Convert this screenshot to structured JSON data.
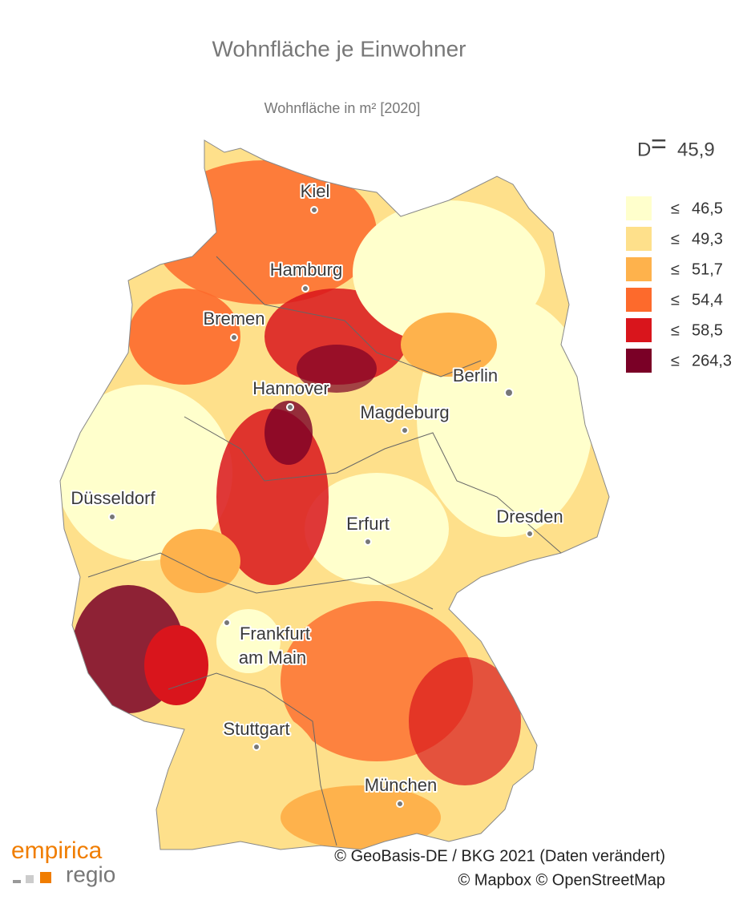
{
  "header": {
    "title": "Wohnfläche je Einwohner",
    "subtitle": "Wohnfläche in m² [2020]"
  },
  "average": {
    "label": "D",
    "sign": "=",
    "value": "45,9"
  },
  "legend": [
    {
      "symbol": "≤",
      "label": "46,5",
      "color": "#ffffcc"
    },
    {
      "symbol": "≤",
      "label": "49,3",
      "color": "#fee08b"
    },
    {
      "symbol": "≤",
      "label": "51,7",
      "color": "#feb24c"
    },
    {
      "symbol": "≤",
      "label": "54,4",
      "color": "#fd6a2c"
    },
    {
      "symbol": "≤",
      "label": "58,5",
      "color": "#d9151c"
    },
    {
      "symbol": "≤",
      "label": "264,3",
      "color": "#7a0026"
    }
  ],
  "cities": [
    {
      "lines": [
        "Kiel"
      ]
    },
    {
      "lines": [
        "Hamburg"
      ]
    },
    {
      "lines": [
        "Bremen"
      ]
    },
    {
      "lines": [
        "Hannover"
      ]
    },
    {
      "lines": [
        "Berlin"
      ]
    },
    {
      "lines": [
        "Magdeburg"
      ]
    },
    {
      "lines": [
        "Düsseldorf"
      ]
    },
    {
      "lines": [
        "Erfurt"
      ]
    },
    {
      "lines": [
        "Dresden"
      ]
    },
    {
      "lines": [
        "Frankfurt",
        "am Main"
      ]
    },
    {
      "lines": [
        "Stuttgart"
      ]
    },
    {
      "lines": [
        "München"
      ]
    }
  ],
  "attribution": [
    "© GeoBasis-DE / BKG 2021 (Daten verändert)",
    "© Mapbox © OpenStreetMap"
  ],
  "logo": {
    "brand": "empirica",
    "product": "regio"
  }
}
